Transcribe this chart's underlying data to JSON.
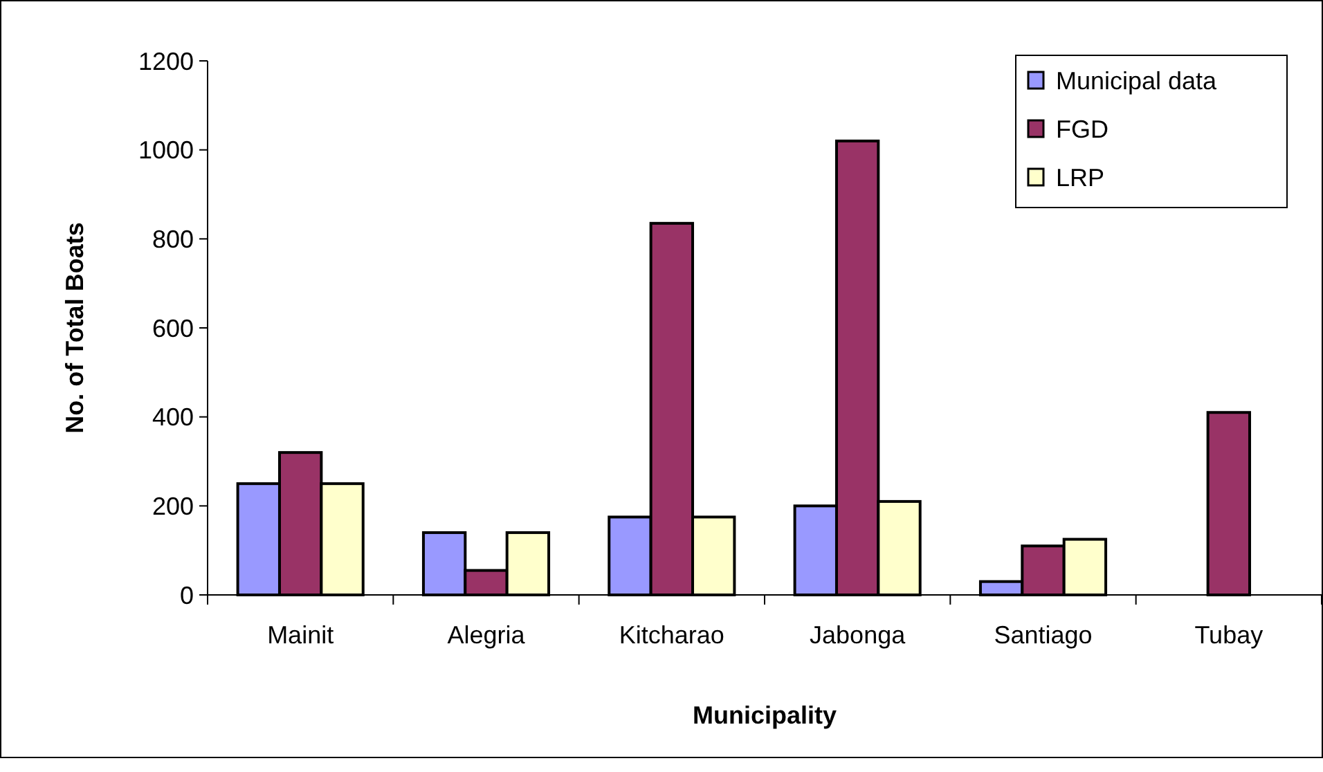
{
  "chart_data": {
    "type": "bar",
    "xlabel": "Municipality",
    "ylabel": "No. of Total Boats",
    "categories": [
      "Mainit",
      "Alegria",
      "Kitcharao",
      "Jabonga",
      "Santiago",
      "Tubay"
    ],
    "series": [
      {
        "name": "Municipal data",
        "color": "#9999ff",
        "values": [
          250,
          140,
          175,
          200,
          30,
          null
        ]
      },
      {
        "name": "FGD",
        "color": "#993366",
        "values": [
          320,
          55,
          835,
          1020,
          110,
          410
        ]
      },
      {
        "name": "LRP",
        "color": "#ffffcc",
        "values": [
          250,
          140,
          175,
          210,
          125,
          null
        ]
      }
    ],
    "ylim": [
      0,
      1200
    ],
    "yticks": [
      0,
      200,
      400,
      600,
      800,
      1000,
      1200
    ],
    "legend": "top right"
  }
}
